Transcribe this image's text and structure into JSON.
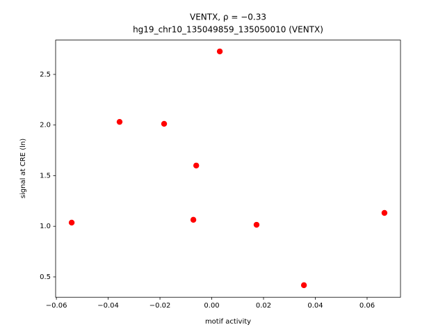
{
  "chart_data": {
    "type": "scatter",
    "title": "VENTX, ρ = −0.33",
    "subtitle": "hg19_chr10_135049859_135050010 (VENTX)",
    "x_label": "motif activity",
    "y_label": "signal at CRE (ln)",
    "x": [
      -0.0541,
      -0.0356,
      -0.0184,
      -0.006,
      -0.0071,
      0.0031,
      0.0173,
      0.0356,
      0.0667
    ],
    "values": [
      1.036,
      2.031,
      2.012,
      1.6,
      1.064,
      2.727,
      1.015,
      0.418,
      1.132
    ],
    "color": "#ff0000",
    "xlim": [
      -0.0603,
      0.0729
    ],
    "ylim": [
      0.299,
      2.839
    ],
    "xticks": [
      {
        "value": -0.06,
        "label": "−0.06"
      },
      {
        "value": -0.04,
        "label": "−0.04"
      },
      {
        "value": -0.02,
        "label": "−0.02"
      },
      {
        "value": 0,
        "label": "0.00"
      },
      0.02,
      0.04,
      0.06
    ],
    "yticks": [
      0.5,
      {
        "value": 1,
        "label": "1.0"
      },
      1.5,
      {
        "value": 2,
        "label": "2.0"
      },
      2.5
    ],
    "grid": false
  }
}
